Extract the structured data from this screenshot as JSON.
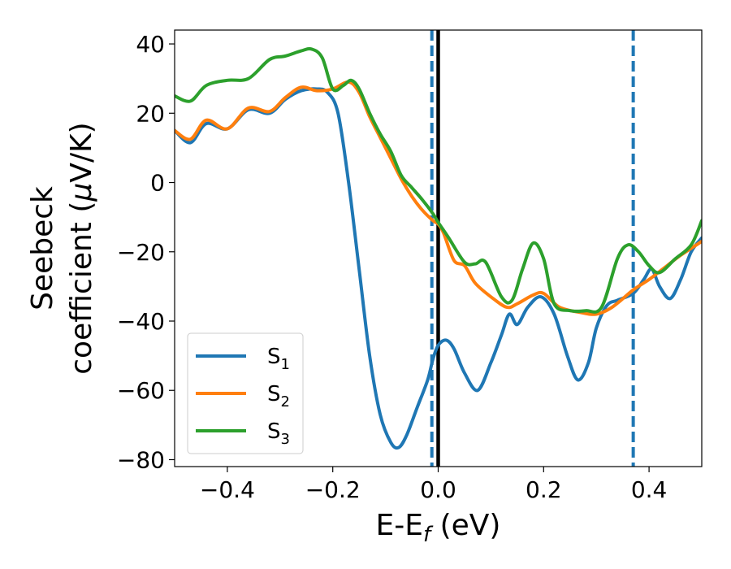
{
  "chart_data": {
    "type": "line",
    "xlabel": "E-E",
    "xlabel_sub": "f",
    "xlabel_unit": " (eV)",
    "ylabel_line1": "Seebeck",
    "ylabel_line2": "coefficient  (",
    "ylabel_mu": "μ",
    "ylabel_unit_end": "V/K)",
    "xlim": [
      -0.5,
      0.5
    ],
    "ylim": [
      -82,
      44
    ],
    "xticks": [
      -0.4,
      -0.2,
      0.0,
      0.2,
      0.4
    ],
    "xtick_labels": [
      "−0.4",
      "−0.2",
      "0.0",
      "0.2",
      "0.4"
    ],
    "yticks": [
      -80,
      -60,
      -40,
      -20,
      0,
      20,
      40
    ],
    "ytick_labels": [
      "−80",
      "−60",
      "−40",
      "−20",
      "0",
      "20",
      "40"
    ],
    "grid": false,
    "legend_position": "lower-left",
    "vlines": [
      {
        "x": -0.012,
        "style": "dashed",
        "color": "#1f77b4"
      },
      {
        "x": 0.0,
        "style": "solid",
        "color": "#000000"
      },
      {
        "x": 0.37,
        "style": "dashed",
        "color": "#1f77b4"
      }
    ],
    "series": [
      {
        "name": "S",
        "sub": "1",
        "color": "#1f77b4",
        "points": [
          [
            -0.5,
            15
          ],
          [
            -0.47,
            11.5
          ],
          [
            -0.44,
            17
          ],
          [
            -0.4,
            15.5
          ],
          [
            -0.36,
            21
          ],
          [
            -0.32,
            20
          ],
          [
            -0.29,
            24
          ],
          [
            -0.26,
            26.5
          ],
          [
            -0.23,
            27
          ],
          [
            -0.21,
            26
          ],
          [
            -0.19,
            20
          ],
          [
            -0.17,
            0
          ],
          [
            -0.15,
            -25
          ],
          [
            -0.13,
            -50
          ],
          [
            -0.11,
            -67
          ],
          [
            -0.09,
            -75
          ],
          [
            -0.075,
            -76.5
          ],
          [
            -0.06,
            -73
          ],
          [
            -0.04,
            -65
          ],
          [
            -0.02,
            -57
          ],
          [
            -0.01,
            -51
          ],
          [
            0.0,
            -47
          ],
          [
            0.015,
            -45.5
          ],
          [
            0.03,
            -48
          ],
          [
            0.05,
            -55
          ],
          [
            0.075,
            -60
          ],
          [
            0.1,
            -52
          ],
          [
            0.12,
            -44
          ],
          [
            0.135,
            -38
          ],
          [
            0.15,
            -41
          ],
          [
            0.17,
            -36
          ],
          [
            0.195,
            -33
          ],
          [
            0.22,
            -38
          ],
          [
            0.245,
            -50
          ],
          [
            0.265,
            -57
          ],
          [
            0.285,
            -52
          ],
          [
            0.3,
            -42
          ],
          [
            0.32,
            -35.5
          ],
          [
            0.34,
            -34
          ],
          [
            0.37,
            -32
          ],
          [
            0.39,
            -28
          ],
          [
            0.405,
            -25
          ],
          [
            0.42,
            -30
          ],
          [
            0.44,
            -33.5
          ],
          [
            0.46,
            -28
          ],
          [
            0.48,
            -20
          ],
          [
            0.5,
            -16
          ]
        ]
      },
      {
        "name": "S",
        "sub": "2",
        "color": "#ff7f0e",
        "points": [
          [
            -0.5,
            15
          ],
          [
            -0.47,
            12.5
          ],
          [
            -0.44,
            18
          ],
          [
            -0.4,
            15.5
          ],
          [
            -0.36,
            21.5
          ],
          [
            -0.32,
            20.5
          ],
          [
            -0.29,
            24.5
          ],
          [
            -0.26,
            27.5
          ],
          [
            -0.23,
            26.5
          ],
          [
            -0.2,
            27
          ],
          [
            -0.17,
            29
          ],
          [
            -0.15,
            26
          ],
          [
            -0.13,
            19
          ],
          [
            -0.11,
            13
          ],
          [
            -0.09,
            7
          ],
          [
            -0.07,
            1
          ],
          [
            -0.05,
            -4
          ],
          [
            -0.03,
            -8
          ],
          [
            -0.01,
            -11
          ],
          [
            0.0,
            -12
          ],
          [
            0.01,
            -14.5
          ],
          [
            0.03,
            -22.5
          ],
          [
            0.05,
            -24
          ],
          [
            0.07,
            -29
          ],
          [
            0.1,
            -33
          ],
          [
            0.13,
            -36
          ],
          [
            0.15,
            -35
          ],
          [
            0.18,
            -32.5
          ],
          [
            0.2,
            -32
          ],
          [
            0.23,
            -36
          ],
          [
            0.27,
            -37.5
          ],
          [
            0.3,
            -38
          ],
          [
            0.33,
            -36
          ],
          [
            0.37,
            -31
          ],
          [
            0.4,
            -28
          ],
          [
            0.43,
            -24.5
          ],
          [
            0.46,
            -21
          ],
          [
            0.5,
            -17
          ]
        ]
      },
      {
        "name": "S",
        "sub": "3",
        "color": "#2ca02c",
        "points": [
          [
            -0.5,
            25
          ],
          [
            -0.47,
            23.5
          ],
          [
            -0.44,
            28
          ],
          [
            -0.4,
            29.5
          ],
          [
            -0.36,
            30
          ],
          [
            -0.32,
            35.5
          ],
          [
            -0.29,
            36.5
          ],
          [
            -0.26,
            38
          ],
          [
            -0.24,
            38.5
          ],
          [
            -0.22,
            36
          ],
          [
            -0.2,
            27
          ],
          [
            -0.18,
            28
          ],
          [
            -0.165,
            29.5
          ],
          [
            -0.15,
            27
          ],
          [
            -0.13,
            20
          ],
          [
            -0.11,
            14
          ],
          [
            -0.09,
            9
          ],
          [
            -0.07,
            2
          ],
          [
            -0.05,
            -1.5
          ],
          [
            -0.03,
            -5
          ],
          [
            -0.01,
            -9
          ],
          [
            0.0,
            -11.5
          ],
          [
            0.02,
            -16
          ],
          [
            0.05,
            -23
          ],
          [
            0.07,
            -23.5
          ],
          [
            0.09,
            -23
          ],
          [
            0.12,
            -33
          ],
          [
            0.14,
            -34
          ],
          [
            0.16,
            -25
          ],
          [
            0.18,
            -17.5
          ],
          [
            0.2,
            -22
          ],
          [
            0.22,
            -35
          ],
          [
            0.25,
            -37
          ],
          [
            0.28,
            -37
          ],
          [
            0.31,
            -36
          ],
          [
            0.34,
            -22
          ],
          [
            0.36,
            -18
          ],
          [
            0.38,
            -20
          ],
          [
            0.4,
            -24
          ],
          [
            0.42,
            -26
          ],
          [
            0.45,
            -22
          ],
          [
            0.48,
            -18
          ],
          [
            0.5,
            -11
          ]
        ]
      }
    ]
  }
}
